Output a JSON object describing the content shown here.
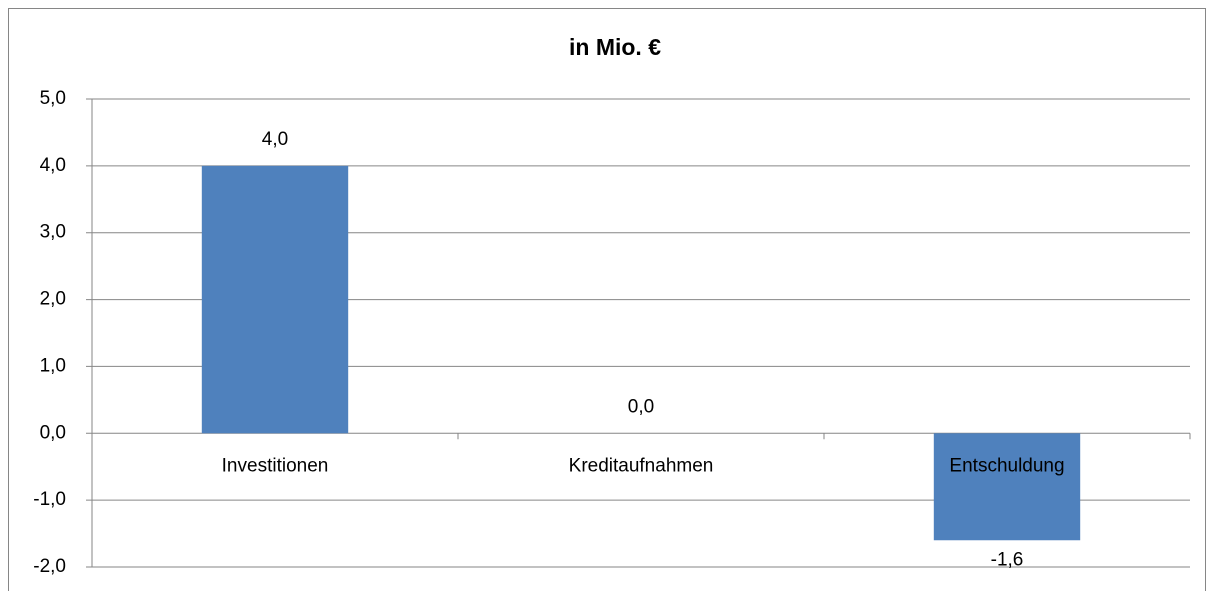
{
  "chart_data": {
    "type": "bar",
    "title": "in Mio. €",
    "categories": [
      "Investitionen",
      "Kreditaufnahmen",
      "Entschuldung"
    ],
    "values": [
      4.0,
      0.0,
      -1.6
    ],
    "value_labels": [
      "4,0",
      "0,0",
      "-1,6"
    ],
    "color": "#4f81bd",
    "ylim": [
      -2,
      5
    ],
    "yticks": [
      {
        "value": -2,
        "label": "-2,0"
      },
      {
        "value": -1,
        "label": "-1,0"
      },
      {
        "value": 0,
        "label": "0,0"
      },
      {
        "value": 1,
        "label": "1,0"
      },
      {
        "value": 2,
        "label": "2,0"
      },
      {
        "value": 3,
        "label": "3,0"
      },
      {
        "value": 4,
        "label": "4,0"
      },
      {
        "value": 5,
        "label": "5,0"
      }
    ],
    "grid": true
  }
}
